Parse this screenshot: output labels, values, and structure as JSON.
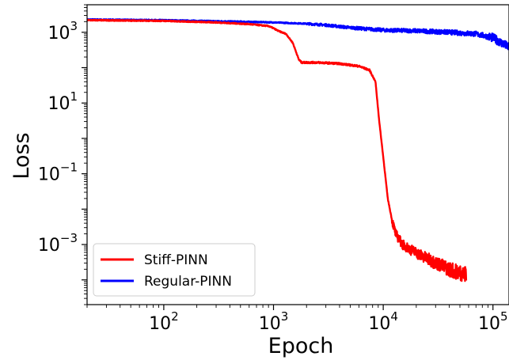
{
  "chart_data": {
    "type": "line",
    "xlabel": "Epoch",
    "ylabel": "Loss",
    "xscale": "log",
    "yscale": "log",
    "xlim": [
      20,
      140000
    ],
    "ylim": [
      2e-05,
      6000
    ],
    "grid": false,
    "legend_position": "lower-left",
    "x_ticks": [
      {
        "value": 100,
        "base": "10",
        "exp": "2"
      },
      {
        "value": 1000,
        "base": "10",
        "exp": "3"
      },
      {
        "value": 10000,
        "base": "10",
        "exp": "4"
      },
      {
        "value": 100000,
        "base": "10",
        "exp": "5"
      }
    ],
    "y_ticks": [
      {
        "value": 1000,
        "base": "10",
        "exp": "3"
      },
      {
        "value": 10,
        "base": "10",
        "exp": "1"
      },
      {
        "value": 0.1,
        "base": "10",
        "exp": "−1"
      },
      {
        "value": 0.001,
        "base": "10",
        "exp": "−3"
      }
    ],
    "series": [
      {
        "name": "Stiff-PINN",
        "color": "#ff0000",
        "x": [
          20,
          100,
          300,
          600,
          900,
          1000,
          1100,
          1300,
          1500,
          1700,
          1800,
          2500,
          4000,
          6000,
          7500,
          8500,
          9200,
          10000,
          11000,
          12000,
          13000,
          15000,
          18000,
          25000,
          40000,
          57000
        ],
        "y": [
          2200,
          2100,
          1900,
          1700,
          1500,
          1300,
          1100,
          900,
          500,
          170,
          140,
          140,
          130,
          110,
          85,
          40,
          3,
          0.3,
          0.02,
          0.005,
          0.002,
          0.001,
          0.0007,
          0.0004,
          0.0002,
          0.00014
        ]
      },
      {
        "name": "Regular-PINN",
        "color": "#0000ff",
        "x": [
          20,
          100,
          500,
          1000,
          2000,
          3000,
          5000,
          10000,
          20000,
          40000,
          70000,
          100000,
          120000,
          140000
        ],
        "y": [
          2300,
          2200,
          2000,
          1900,
          1750,
          1600,
          1350,
          1150,
          1100,
          1000,
          900,
          700,
          500,
          380
        ]
      }
    ]
  }
}
